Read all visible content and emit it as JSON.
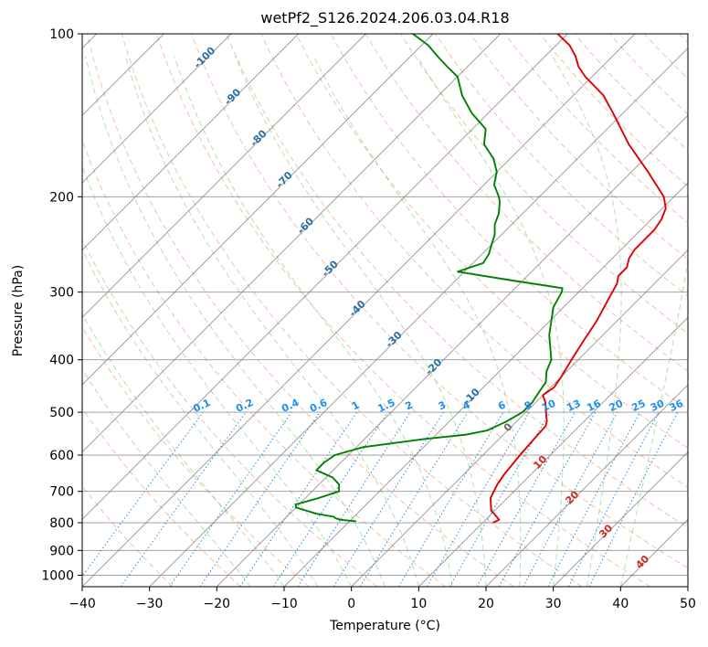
{
  "chart_data": {
    "type": "line",
    "title": "wetPf2_S126.2024.206.03.04.R18",
    "xlabel": "Temperature (°C)",
    "ylabel": "Pressure (hPa)",
    "xlim": [
      -40,
      50
    ],
    "ylim": [
      1050,
      100
    ],
    "y_scale": "log",
    "grid": true,
    "x_ticks": [
      -40,
      -30,
      -20,
      -10,
      0,
      10,
      20,
      30,
      40,
      50
    ],
    "y_ticks": [
      1000,
      900,
      800,
      700,
      600,
      500,
      400,
      300,
      200,
      100
    ],
    "colors": {
      "temperature": "#e00000",
      "dewpoint": "#008000",
      "dry_adiabat": "#f4a582",
      "moist_adiabat": "#74c476",
      "mixing_ratio": "#1f8ff0",
      "isotherm": "#7a7a7a",
      "isotherm_label_blue": "#2c6fa3",
      "isotherm_label_red": "#d62728"
    },
    "series": [
      {
        "name": "",
        "variable": "temperature",
        "points": [
          [
            800,
            11.5
          ],
          [
            790,
            12
          ],
          [
            780,
            11.2
          ],
          [
            760,
            9.5
          ],
          [
            740,
            8.5
          ],
          [
            720,
            7.5
          ],
          [
            700,
            7.0
          ],
          [
            680,
            6.5
          ],
          [
            650,
            6.0
          ],
          [
            600,
            5.5
          ],
          [
            560,
            5.2
          ],
          [
            530,
            5.0
          ],
          [
            520,
            4.5
          ],
          [
            500,
            3.0
          ],
          [
            480,
            1.5
          ],
          [
            465,
            0.0
          ],
          [
            450,
            0.5
          ],
          [
            430,
            0.0
          ],
          [
            400,
            -1.0
          ],
          [
            370,
            -2.0
          ],
          [
            340,
            -3.0
          ],
          [
            300,
            -5.0
          ],
          [
            290,
            -5.5
          ],
          [
            280,
            -6.5
          ],
          [
            270,
            -6.5
          ],
          [
            260,
            -7.5
          ],
          [
            250,
            -8.0
          ],
          [
            240,
            -8.0
          ],
          [
            230,
            -8.0
          ],
          [
            220,
            -8.5
          ],
          [
            210,
            -9.5
          ],
          [
            200,
            -11.5
          ],
          [
            180,
            -17.5
          ],
          [
            160,
            -24.5
          ],
          [
            140,
            -31.5
          ],
          [
            130,
            -35.5
          ],
          [
            120,
            -41.0
          ],
          [
            115,
            -43.5
          ],
          [
            110,
            -45.5
          ],
          [
            105,
            -48
          ],
          [
            100,
            -51.5
          ]
        ]
      },
      {
        "name": "",
        "variable": "dewpoint",
        "points": [
          [
            795,
            -9.0
          ],
          [
            790,
            -11.5
          ],
          [
            785,
            -12.5
          ],
          [
            780,
            -13.0
          ],
          [
            770,
            -16.0
          ],
          [
            750,
            -20.0
          ],
          [
            740,
            -20.5
          ],
          [
            720,
            -18.0
          ],
          [
            700,
            -16.0
          ],
          [
            680,
            -17.0
          ],
          [
            660,
            -19.0
          ],
          [
            640,
            -22.5
          ],
          [
            620,
            -22.5
          ],
          [
            600,
            -22.0
          ],
          [
            580,
            -19.0
          ],
          [
            560,
            -11.0
          ],
          [
            550,
            -5.5
          ],
          [
            540,
            -3.0
          ],
          [
            520,
            -1.5
          ],
          [
            500,
            -0.5
          ],
          [
            480,
            -0.5
          ],
          [
            460,
            -1.0
          ],
          [
            440,
            -1.5
          ],
          [
            420,
            -3.0
          ],
          [
            400,
            -4.0
          ],
          [
            360,
            -8.0
          ],
          [
            320,
            -11.5
          ],
          [
            300,
            -12.5
          ],
          [
            295,
            -13.0
          ],
          [
            285,
            -22.0
          ],
          [
            275,
            -31.0
          ],
          [
            265,
            -28.5
          ],
          [
            255,
            -29.0
          ],
          [
            245,
            -30.0
          ],
          [
            235,
            -31.0
          ],
          [
            225,
            -32.5
          ],
          [
            215,
            -33.5
          ],
          [
            205,
            -35.0
          ],
          [
            200,
            -36.0
          ],
          [
            190,
            -38.5
          ],
          [
            180,
            -40.0
          ],
          [
            170,
            -42.5
          ],
          [
            160,
            -46.0
          ],
          [
            150,
            -48.0
          ],
          [
            140,
            -52.5
          ],
          [
            130,
            -56.5
          ],
          [
            120,
            -60.0
          ],
          [
            115,
            -63.0
          ],
          [
            110,
            -66.0
          ],
          [
            105,
            -69.0
          ],
          [
            100,
            -73.0
          ]
        ]
      }
    ],
    "isotherm_labels": [
      "-100",
      "-90",
      "-80",
      "-70",
      "-60",
      "-50",
      "-40",
      "-30",
      "-20",
      "-10",
      "0",
      "10",
      "20",
      "30",
      "40"
    ],
    "mixing_ratio_labels": [
      "0.1",
      "0.2",
      "0.4",
      "0.6",
      "1",
      "1.5",
      "2",
      "3",
      "4",
      "6",
      "8",
      "10",
      "13",
      "16",
      "20",
      "25",
      "30",
      "36"
    ]
  }
}
